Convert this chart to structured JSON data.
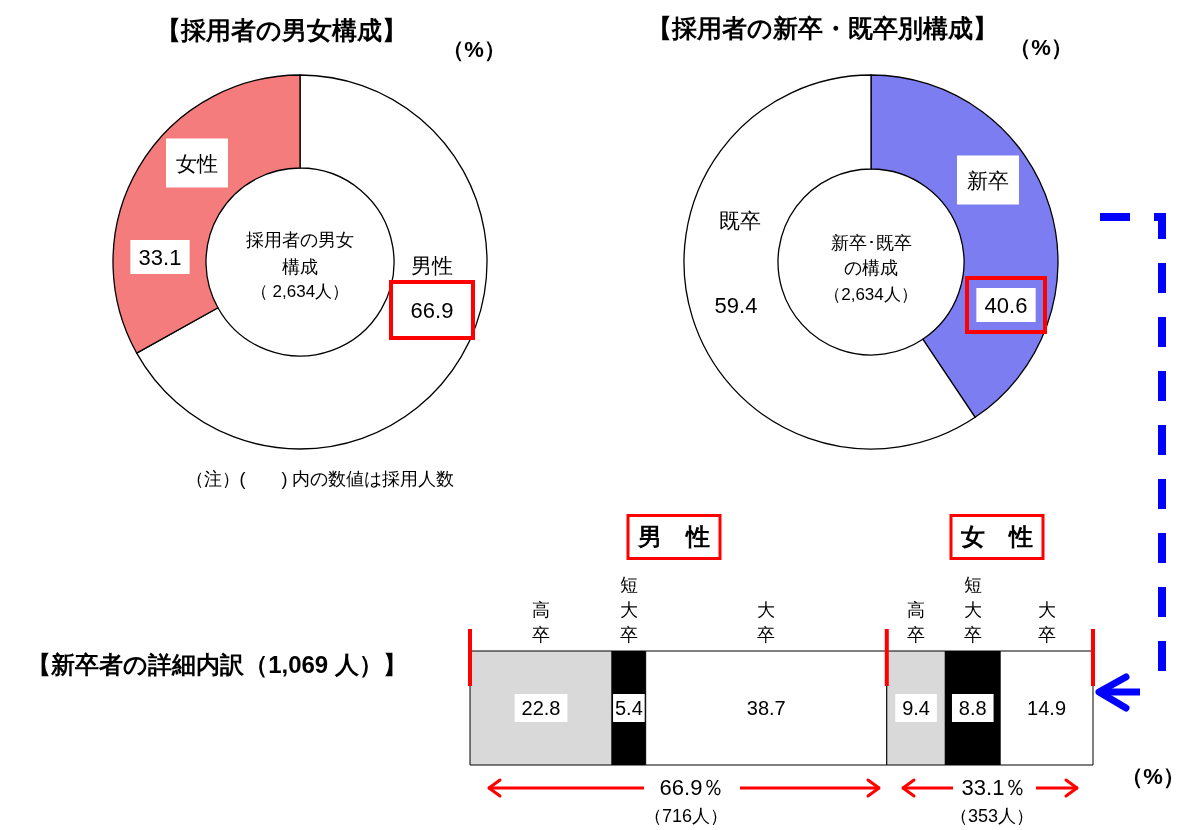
{
  "chart_data": [
    {
      "type": "donut",
      "title": "【採用者の男女構成】",
      "categories": [
        "男性",
        "女性"
      ],
      "values": [
        66.9,
        33.1
      ],
      "colors": [
        "#ffffff",
        "#f47c7c"
      ],
      "data_labels": true,
      "annotations": [
        "（%）",
        "採用者の男女構成",
        "（ 2,634人）",
        "（注）(　　) 内の数値は採用人数"
      ]
    },
    {
      "type": "donut",
      "title": "【採用者の新卒・既卒別構成】",
      "categories": [
        "新卒",
        "既卒"
      ],
      "values": [
        40.6,
        59.4
      ],
      "colors": [
        "#7d7df2",
        "#ffffff"
      ],
      "data_labels": true,
      "annotations": [
        "（%）",
        "新卒･既卒の構成",
        "（2,634人）"
      ]
    },
    {
      "type": "bar",
      "orientation": "horizontal",
      "stacked": true,
      "title": "【新卒者の詳細内訳（1,069 人）】",
      "categories": [
        null
      ],
      "series": [
        {
          "name": "高卒",
          "color": "#d9d9d9",
          "values": [
            22.8
          ]
        },
        {
          "name": "短大卒",
          "color": "#000000",
          "values": [
            5.4
          ]
        },
        {
          "name": "大卒",
          "color": "#ffffff",
          "values": [
            38.7
          ]
        },
        {
          "name": "高卒",
          "color": "#d9d9d9",
          "values": [
            9.4
          ]
        },
        {
          "name": "短大卒",
          "color": "#000000",
          "values": [
            8.8
          ]
        },
        {
          "name": "大卒",
          "color": "#ffffff",
          "values": [
            14.9
          ]
        }
      ],
      "data_labels": true,
      "ref_lines": [
        {
          "axis": "x",
          "value": 0,
          "color": "#ff0000"
        },
        {
          "axis": "x",
          "value": 66.9,
          "color": "#ff0000"
        },
        {
          "axis": "x",
          "value": 100,
          "color": "#ff0000"
        }
      ],
      "annotations": [
        "男　性",
        "女　性",
        "66.9％",
        "（716人）",
        "33.1％",
        "（353人）",
        "（%）"
      ]
    }
  ]
}
